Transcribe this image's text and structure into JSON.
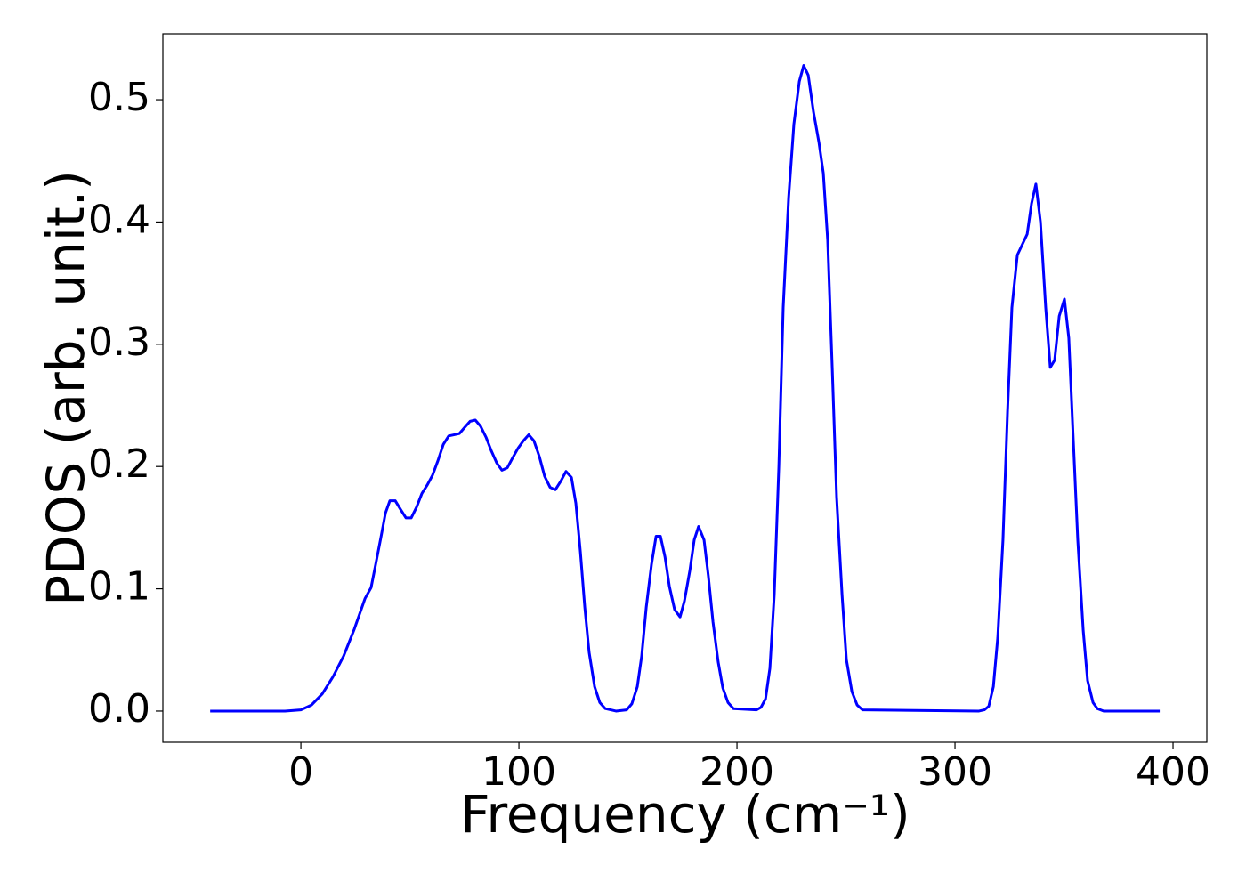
{
  "chart_data": {
    "type": "line",
    "x_label": "Frequency (cm⁻¹)",
    "y_label": "PDOS (arb. unit.)",
    "color": "#0000ff",
    "x": [
      -41.6,
      -7.3,
      0,
      4.9,
      9.8,
      14.7,
      19.6,
      24.5,
      29.4,
      32.2,
      34.3,
      36.7,
      38.8,
      40.8,
      43.3,
      45.7,
      48.2,
      50.6,
      53.1,
      55.5,
      58,
      60.4,
      62.9,
      65.3,
      67.8,
      72.7,
      75.1,
      77.6,
      80,
      82.4,
      84.9,
      87.3,
      89.8,
      92.2,
      94.7,
      97.1,
      99.6,
      102,
      104.5,
      106.9,
      109.4,
      111.8,
      114.3,
      116.7,
      119.2,
      121.6,
      124.1,
      126.1,
      128.2,
      130.2,
      132.2,
      134.7,
      137.1,
      139.6,
      144.5,
      149.4,
      151.8,
      154.3,
      156.3,
      158.4,
      160.8,
      162.9,
      164.9,
      167,
      169,
      171.4,
      173.9,
      175.9,
      178.4,
      180.4,
      182.4,
      184.9,
      186.9,
      189,
      191.4,
      193.5,
      195.9,
      198.4,
      209,
      211,
      213.1,
      215.1,
      217.1,
      219.2,
      221.2,
      223.7,
      226.1,
      228.6,
      230.6,
      232.7,
      235.1,
      237.6,
      239.6,
      241.6,
      243.7,
      245.7,
      248.2,
      250.2,
      252.7,
      255.1,
      257.6,
      311,
      313.5,
      315.5,
      317.6,
      319.6,
      322,
      324.1,
      326.1,
      328.6,
      333.1,
      335.1,
      337.1,
      339.2,
      341.6,
      343.7,
      345.7,
      347.8,
      350.2,
      352.2,
      354.3,
      356.3,
      358.8,
      360.8,
      363.3,
      365.3,
      368.2,
      393.9
    ],
    "values": [
      0,
      0,
      0.001,
      0.005,
      0.014,
      0.028,
      0.045,
      0.067,
      0.092,
      0.101,
      0.12,
      0.142,
      0.162,
      0.172,
      0.172,
      0.165,
      0.158,
      0.158,
      0.167,
      0.178,
      0.185,
      0.193,
      0.205,
      0.218,
      0.225,
      0.227,
      0.232,
      0.237,
      0.238,
      0.233,
      0.224,
      0.213,
      0.203,
      0.197,
      0.199,
      0.207,
      0.215,
      0.221,
      0.226,
      0.221,
      0.208,
      0.192,
      0.183,
      0.181,
      0.188,
      0.196,
      0.191,
      0.17,
      0.13,
      0.085,
      0.048,
      0.02,
      0.007,
      0.002,
      0,
      0.001,
      0.006,
      0.02,
      0.045,
      0.085,
      0.12,
      0.143,
      0.143,
      0.126,
      0.102,
      0.083,
      0.077,
      0.09,
      0.115,
      0.14,
      0.151,
      0.14,
      0.11,
      0.073,
      0.04,
      0.019,
      0.007,
      0.002,
      0.001,
      0.003,
      0.01,
      0.035,
      0.095,
      0.2,
      0.33,
      0.42,
      0.48,
      0.515,
      0.528,
      0.52,
      0.49,
      0.465,
      0.44,
      0.385,
      0.28,
      0.175,
      0.095,
      0.042,
      0.016,
      0.005,
      0.001,
      0,
      0.001,
      0.004,
      0.02,
      0.06,
      0.14,
      0.245,
      0.33,
      0.373,
      0.39,
      0.415,
      0.431,
      0.4,
      0.33,
      0.281,
      0.287,
      0.323,
      0.337,
      0.305,
      0.22,
      0.14,
      0.066,
      0.025,
      0.007,
      0.002,
      0,
      0
    ],
    "xlim": [
      -63.3,
      415.5
    ],
    "ylim": [
      -0.0255,
      0.5539
    ],
    "xticks": [
      0,
      100,
      200,
      300,
      400
    ],
    "yticks": [
      {
        "value": 0,
        "label": "0.0"
      },
      0.1,
      0.2,
      0.3,
      0.4,
      0.5
    ]
  }
}
